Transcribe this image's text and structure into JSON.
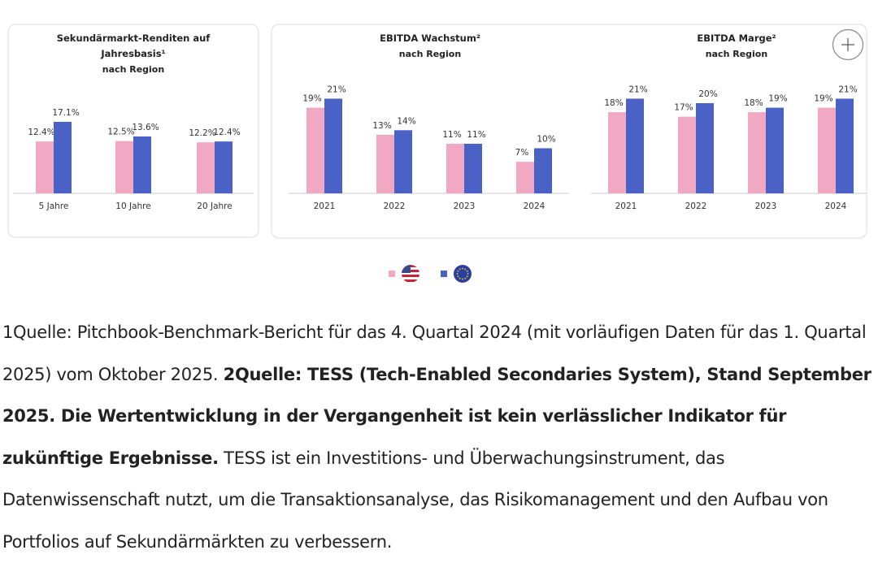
{
  "chart_data": [
    {
      "type": "bar",
      "title": "Sekundärmarkt-Renditen auf Jahresbasis¹",
      "subtitle": "nach Region",
      "categories": [
        "5 Jahre",
        "10 Jahre",
        "20 Jahre"
      ],
      "series": [
        {
          "color": "#f1a9c3",
          "values": [
            12.4,
            12.5,
            12.2
          ],
          "value_labels": [
            "12.4%",
            "12.5%",
            "12.2%"
          ]
        },
        {
          "color": "#4a62c6",
          "values": [
            17.1,
            13.6,
            12.4
          ],
          "value_labels": [
            "17.1%",
            "13.6%",
            "12.4%"
          ]
        }
      ]
    },
    {
      "type": "bar",
      "title": "EBITDA Wachstum²",
      "subtitle": "nach Region",
      "categories": [
        "2021",
        "2022",
        "2023",
        "2024"
      ],
      "series": [
        {
          "color": "#f1a9c3",
          "values": [
            19,
            13,
            11,
            7
          ],
          "value_labels": [
            "19%",
            "13%",
            "11%",
            "7%"
          ]
        },
        {
          "color": "#4a62c6",
          "values": [
            21,
            14,
            11,
            10
          ],
          "value_labels": [
            "21%",
            "14%",
            "11%",
            "10%"
          ]
        }
      ]
    },
    {
      "type": "bar",
      "title": "EBITDA Marge²",
      "subtitle": "nach Region",
      "categories": [
        "2021",
        "2022",
        "2023",
        "2024"
      ],
      "series": [
        {
          "color": "#f1a9c3",
          "values": [
            18,
            17,
            18,
            19
          ],
          "value_labels": [
            "18%",
            "17%",
            "18%",
            "19%"
          ]
        },
        {
          "color": "#4a62c6",
          "values": [
            21,
            20,
            19,
            21
          ],
          "value_labels": [
            "21%",
            "20%",
            "19%",
            "21%"
          ]
        }
      ]
    }
  ],
  "footnote": [
    {
      "text": "1Quelle: Pitchbook-Benchmark-Bericht für das 4. Quartal 2024 (mit vorläufigen Daten für das 1. Quartal 2025) vom Oktober 2025.",
      "bold": false
    },
    {
      "text": "2Quelle: TESS (Tech-Enabled Secondaries System), Stand September 2025. Die Wertentwicklung in der Vergangenheit ist kein verlässlicher Indikator für zukünftige Ergebnisse.",
      "bold": true
    },
    {
      "text": "TESS ist ein Investitions- und Überwachungsinstrument, das Datenwissenschaft nutzt, um die Transaktionsanalyse, das Risikomanagement und den Aufbau von Portfolios auf Sekundärmärkten zu verbessern.",
      "bold": false
    }
  ]
}
